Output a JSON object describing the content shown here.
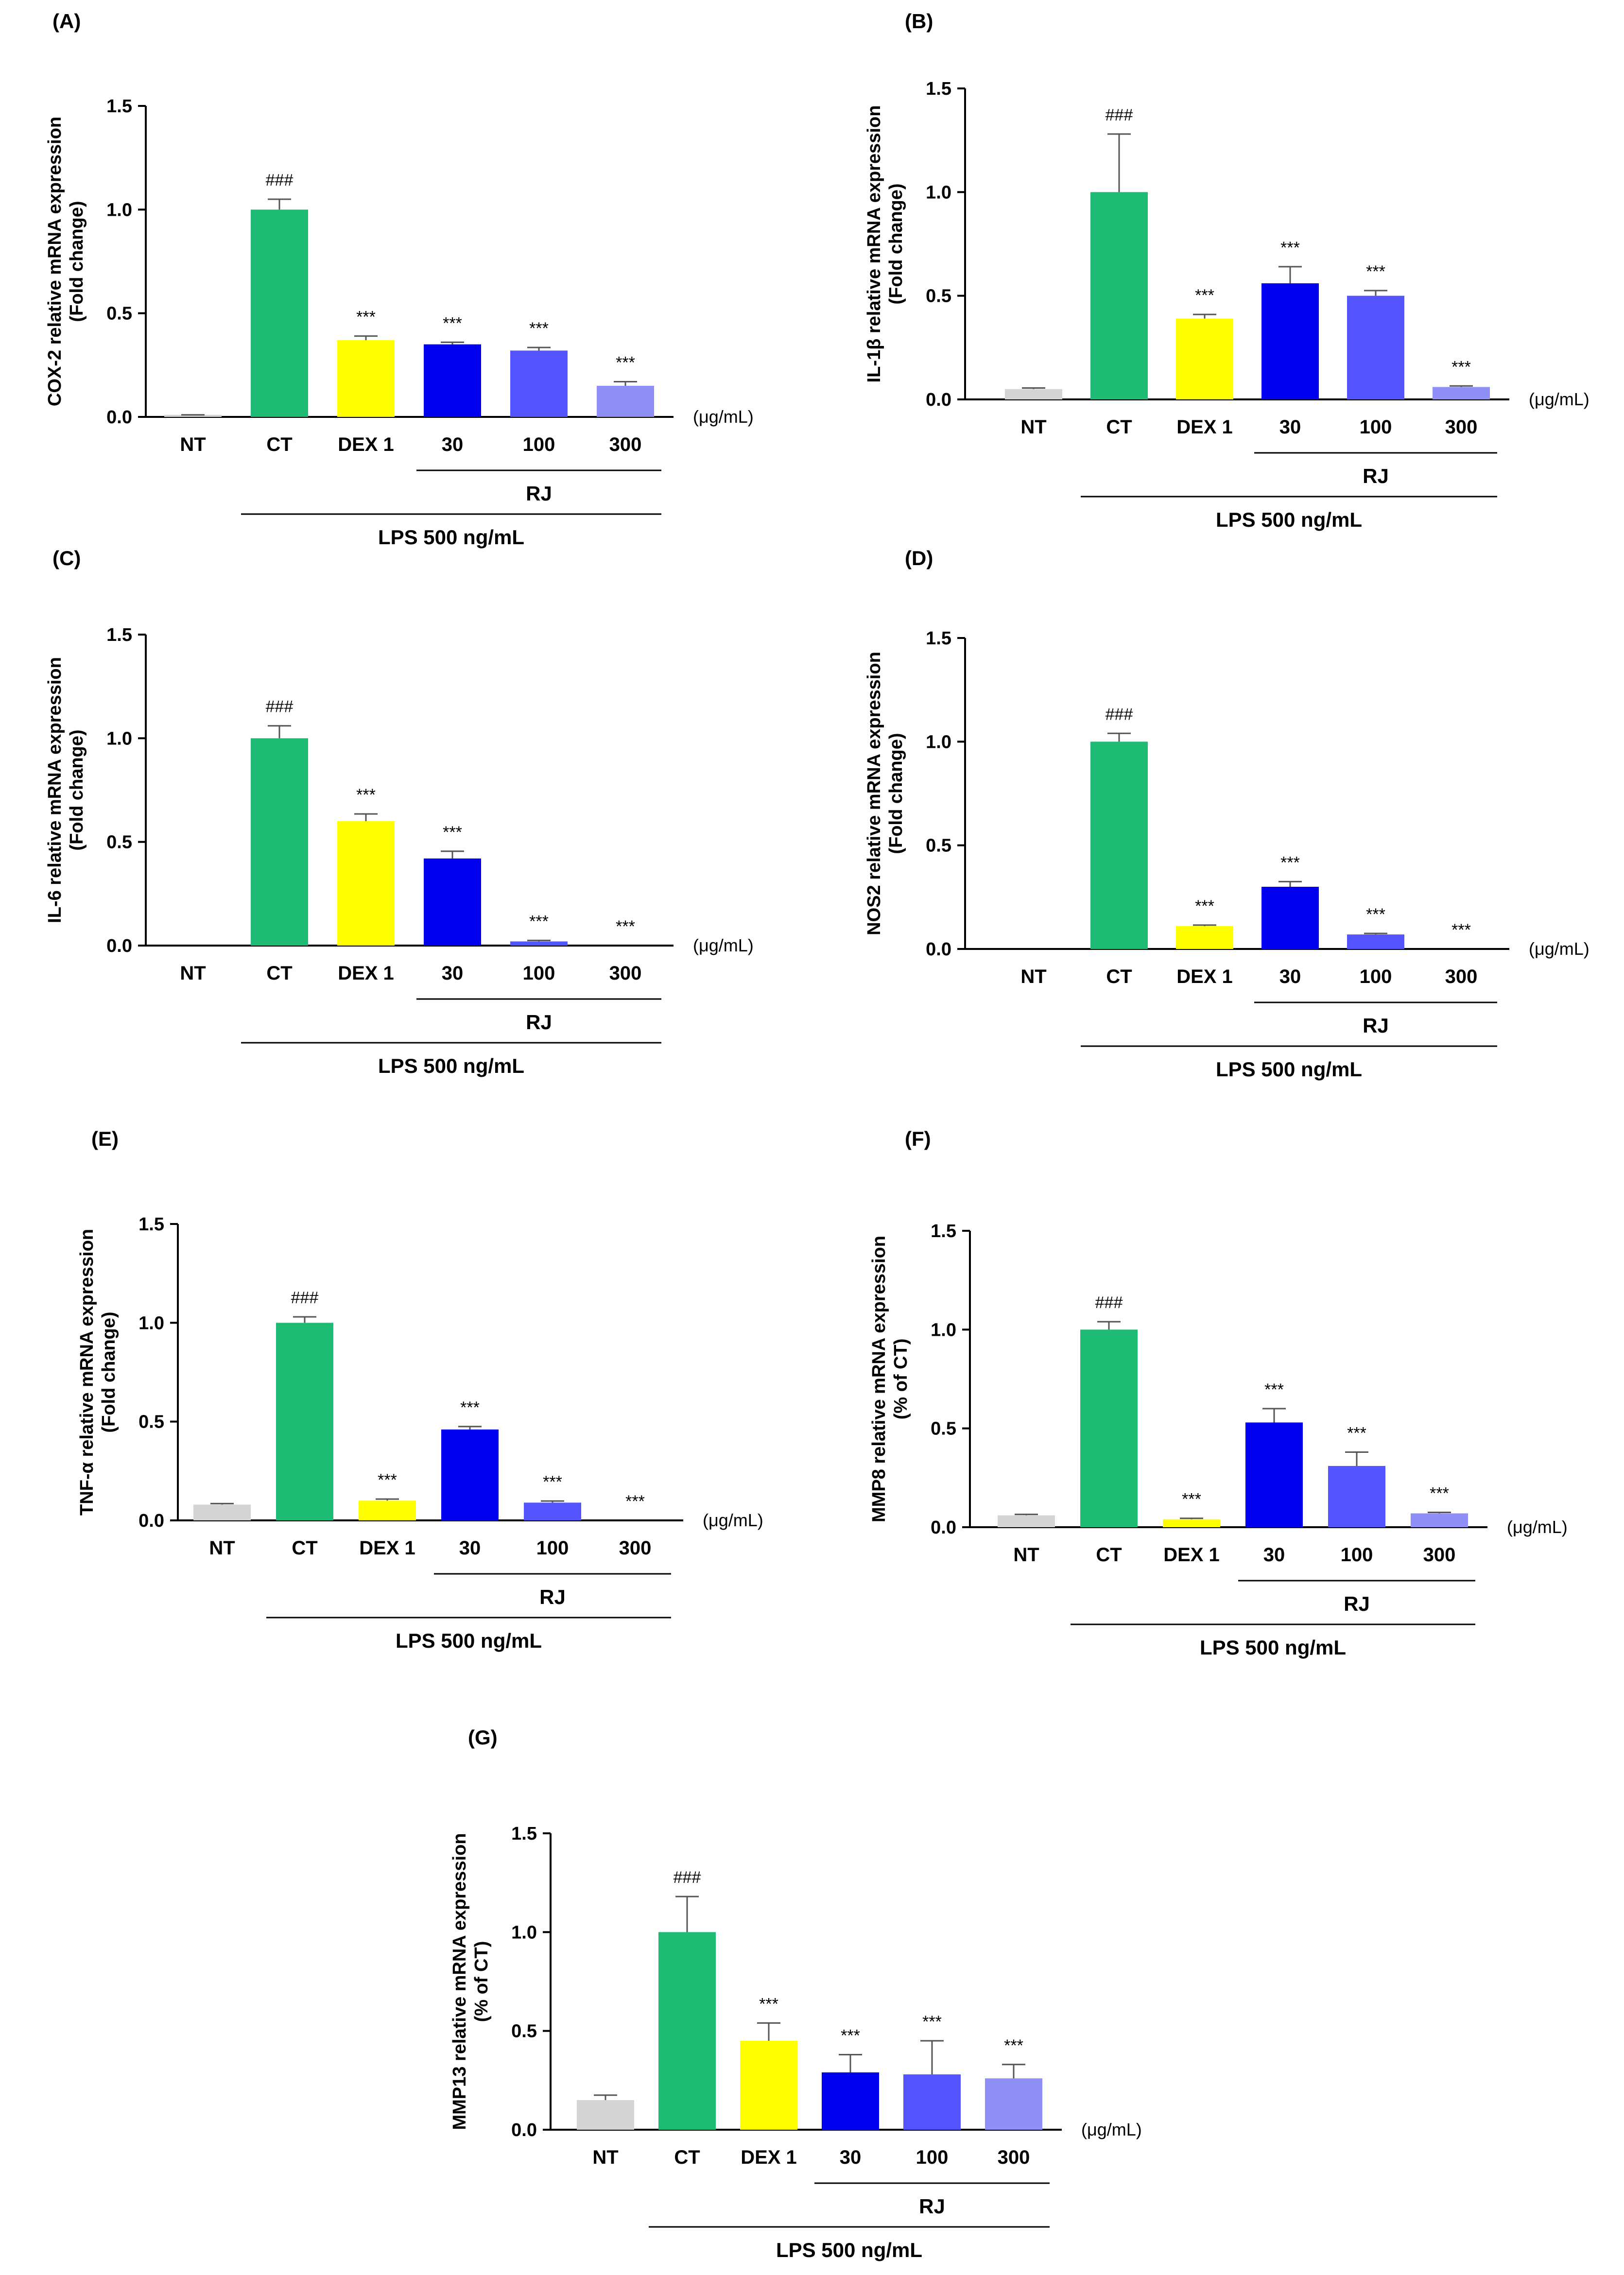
{
  "categories": [
    "NT",
    "CT",
    "DEX 1",
    "30",
    "100",
    "300"
  ],
  "bar_colors": [
    "#d4d4d4",
    "#1dbb73",
    "#ffff00",
    "#0000ee",
    "#5555ff",
    "#8f8ff7"
  ],
  "unit_label": "(μg/mL)",
  "group_label_rj": "RJ",
  "group_label_lps": "LPS 500 ng/mL",
  "chart_data": [
    {
      "panel": "(A)",
      "type": "bar",
      "ylabel_line1": "COX-2 relative mRNA expression",
      "ylabel_line2": "(Fold change)",
      "ylim": [
        0,
        1.5
      ],
      "yticks": [
        "0.0",
        "0.5",
        "1.0",
        "1.5"
      ],
      "values": [
        0.01,
        1.0,
        0.37,
        0.35,
        0.32,
        0.15
      ],
      "errors": [
        0.0,
        0.05,
        0.02,
        0.01,
        0.015,
        0.02
      ],
      "annotations": [
        "",
        "###",
        "***",
        "***",
        "***",
        "***"
      ]
    },
    {
      "panel": "(B)",
      "type": "bar",
      "ylabel_line1": "IL-1β relative mRNA expression",
      "ylabel_line2": "(Fold change)",
      "ylim": [
        0,
        1.5
      ],
      "yticks": [
        "0.0",
        "0.5",
        "1.0",
        "1.5"
      ],
      "values": [
        0.05,
        1.0,
        0.39,
        0.56,
        0.5,
        0.06
      ],
      "errors": [
        0.005,
        0.28,
        0.02,
        0.08,
        0.025,
        0.005
      ],
      "annotations": [
        "",
        "###",
        "***",
        "***",
        "***",
        "***"
      ]
    },
    {
      "panel": "(C)",
      "type": "bar",
      "ylabel_line1": "IL-6 relative mRNA expression",
      "ylabel_line2": "(Fold change)",
      "ylim": [
        0,
        1.5
      ],
      "yticks": [
        "0.0",
        "0.5",
        "1.0",
        "1.5"
      ],
      "values": [
        0.0,
        1.0,
        0.6,
        0.42,
        0.02,
        0.0
      ],
      "errors": [
        0.0,
        0.06,
        0.035,
        0.035,
        0.005,
        0.0
      ],
      "annotations": [
        "",
        "###",
        "***",
        "***",
        "***",
        "***"
      ]
    },
    {
      "panel": "(D)",
      "type": "bar",
      "ylabel_line1": "NOS2 relative mRNA expression",
      "ylabel_line2": "(Fold change)",
      "ylim": [
        0,
        1.5
      ],
      "yticks": [
        "0.0",
        "0.5",
        "1.0",
        "1.5"
      ],
      "values": [
        0.0,
        1.0,
        0.11,
        0.3,
        0.07,
        0.0
      ],
      "errors": [
        0.0,
        0.04,
        0.005,
        0.025,
        0.005,
        0.0
      ],
      "annotations": [
        "",
        "###",
        "***",
        "***",
        "***",
        "***"
      ]
    },
    {
      "panel": "(E)",
      "type": "bar",
      "ylabel_line1": "TNF-α relative mRNA expression",
      "ylabel_line2": "(Fold change)",
      "ylim": [
        0,
        1.5
      ],
      "yticks": [
        "0.0",
        "0.5",
        "1.0",
        "1.5"
      ],
      "values": [
        0.08,
        1.0,
        0.1,
        0.46,
        0.09,
        0.0
      ],
      "errors": [
        0.005,
        0.03,
        0.008,
        0.015,
        0.008,
        0.0
      ],
      "annotations": [
        "",
        "###",
        "***",
        "***",
        "***",
        "***"
      ]
    },
    {
      "panel": "(F)",
      "type": "bar",
      "ylabel_line1": "MMP8 relative mRNA expression",
      "ylabel_line2": "(% of CT)",
      "ylim": [
        0,
        1.5
      ],
      "yticks": [
        "0.0",
        "0.5",
        "1.0",
        "1.5"
      ],
      "values": [
        0.06,
        1.0,
        0.04,
        0.53,
        0.31,
        0.07
      ],
      "errors": [
        0.005,
        0.04,
        0.005,
        0.07,
        0.07,
        0.005
      ],
      "annotations": [
        "",
        "###",
        "***",
        "***",
        "***",
        "***"
      ]
    },
    {
      "panel": "(G)",
      "type": "bar",
      "ylabel_line1": "MMP13 relative mRNA expression",
      "ylabel_line2": "(% of CT)",
      "ylim": [
        0,
        1.5
      ],
      "yticks": [
        "0.0",
        "0.5",
        "1.0",
        "1.5"
      ],
      "values": [
        0.15,
        1.0,
        0.45,
        0.29,
        0.28,
        0.26
      ],
      "errors": [
        0.025,
        0.18,
        0.09,
        0.09,
        0.17,
        0.07
      ],
      "annotations": [
        "",
        "###",
        "***",
        "***",
        "***",
        "***"
      ]
    }
  ]
}
